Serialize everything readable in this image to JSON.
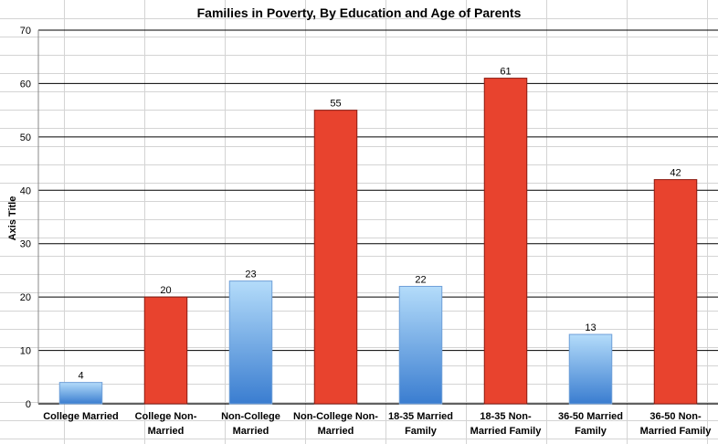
{
  "colors": {
    "married_top": "#b4dcfa",
    "married_bottom": "#3a7dd0",
    "non_married": "#e8432e",
    "non_married_stroke": "#8a1a10",
    "gridline": "#000000",
    "background_cells": "#d4d4d4"
  },
  "chart_data": {
    "type": "bar",
    "title": "Families in Poverty, By Education and Age of Parents",
    "xlabel": "",
    "ylabel": "Axis Title",
    "ylim": [
      0,
      70
    ],
    "yticks": [
      0,
      10,
      20,
      30,
      40,
      50,
      60,
      70
    ],
    "grid": true,
    "legend": "none",
    "categories": [
      [
        "College Married"
      ],
      [
        "College Non-",
        "Married"
      ],
      [
        "Non-College",
        "Married"
      ],
      [
        "Non-College Non-",
        "Married"
      ],
      [
        "18-35 Married",
        "Family"
      ],
      [
        "18-35 Non-",
        "Married Family"
      ],
      [
        "36-50 Married",
        "Family"
      ],
      [
        "36-50 Non-",
        "Married Family"
      ]
    ],
    "values": [
      4,
      20,
      23,
      55,
      22,
      61,
      13,
      42
    ],
    "bar_style": [
      "married",
      "non_married",
      "married",
      "non_married",
      "married",
      "non_married",
      "married",
      "non_married"
    ]
  }
}
